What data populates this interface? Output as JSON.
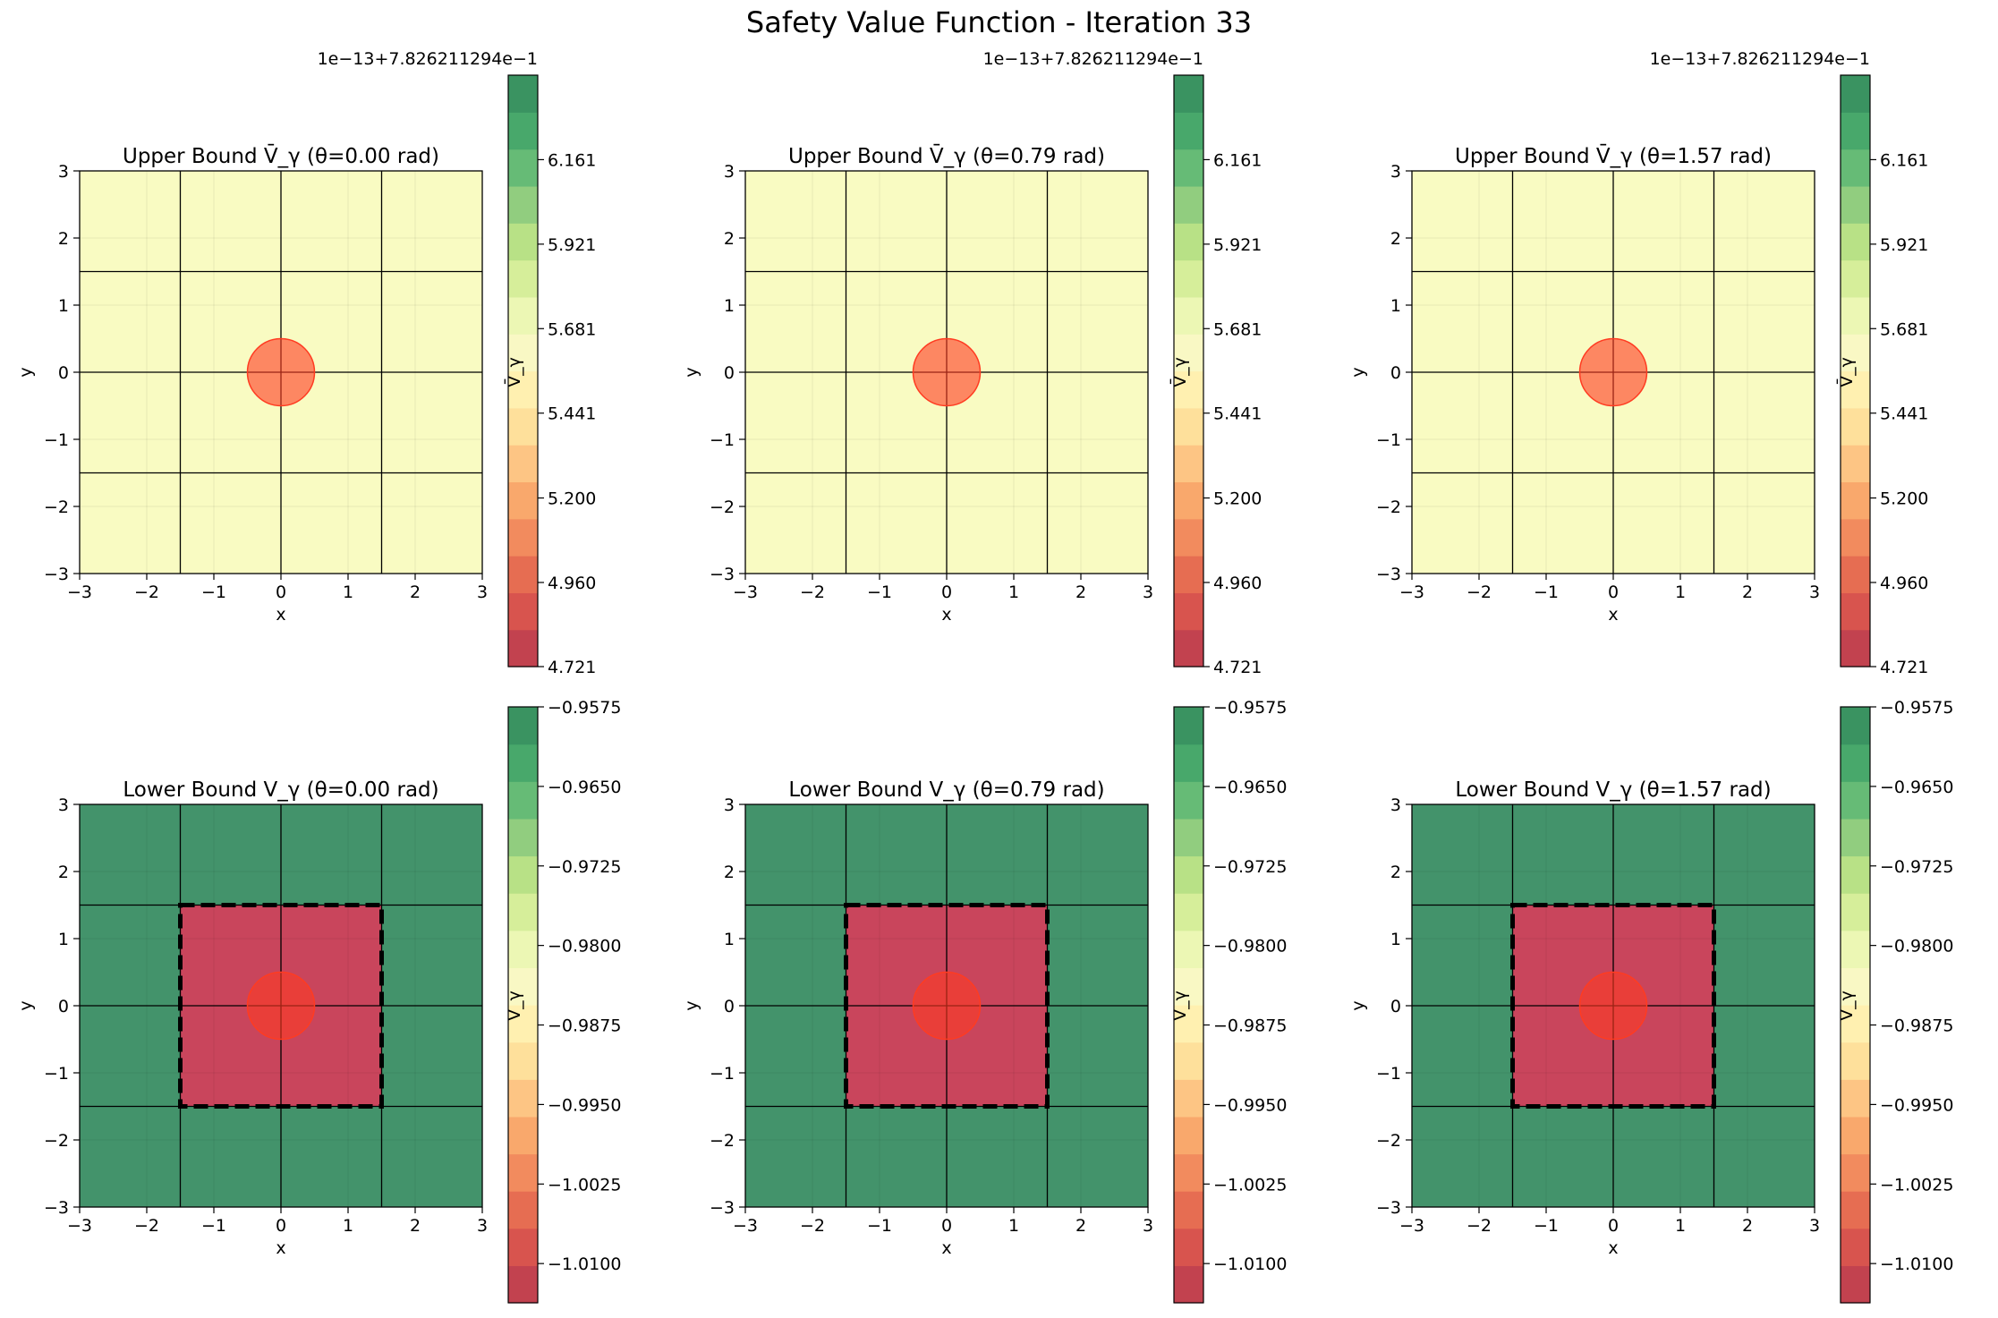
{
  "figure": {
    "title": "Safety Value Function - Iteration 33"
  },
  "chart_data": [
    {
      "type": "heatmap",
      "title": "Upper Bound V̄_γ (θ=0.00 rad)",
      "xlabel": "x",
      "ylabel": "y",
      "xlim": [
        -3,
        3
      ],
      "ylim": [
        -3,
        3
      ],
      "xticks": [
        "−3",
        "−2",
        "−1",
        "0",
        "1",
        "2",
        "3"
      ],
      "yticks": [
        "−3",
        "−2",
        "−1",
        "0",
        "1",
        "2",
        "3"
      ],
      "fill_value": 5.52,
      "circle": {
        "cx": 0,
        "cy": 0,
        "r": 0.5
      },
      "lines": [
        -1.5,
        0,
        1.5
      ],
      "colorbar": {
        "label": "V̄_γ",
        "offset": "1e−13+7.826211294e−1",
        "range": [
          4.721,
          6.401
        ],
        "ticks": [
          4.721,
          4.96,
          5.2,
          5.441,
          5.681,
          5.921,
          6.161
        ],
        "tick_labels": [
          "4.721",
          "4.960",
          "5.200",
          "5.441",
          "5.681",
          "5.921",
          "6.161"
        ]
      }
    },
    {
      "type": "heatmap",
      "title": "Upper Bound V̄_γ (θ=0.79 rad)",
      "xlabel": "x",
      "ylabel": "y",
      "xlim": [
        -3,
        3
      ],
      "ylim": [
        -3,
        3
      ],
      "xticks": [
        "−3",
        "−2",
        "−1",
        "0",
        "1",
        "2",
        "3"
      ],
      "yticks": [
        "−3",
        "−2",
        "−1",
        "0",
        "1",
        "2",
        "3"
      ],
      "fill_value": 5.52,
      "circle": {
        "cx": 0,
        "cy": 0,
        "r": 0.5
      },
      "lines": [
        -1.5,
        0,
        1.5
      ],
      "colorbar": {
        "label": "V̄_γ",
        "offset": "1e−13+7.826211294e−1",
        "range": [
          4.721,
          6.401
        ],
        "ticks": [
          4.721,
          4.96,
          5.2,
          5.441,
          5.681,
          5.921,
          6.161
        ],
        "tick_labels": [
          "4.721",
          "4.960",
          "5.200",
          "5.441",
          "5.681",
          "5.921",
          "6.161"
        ]
      }
    },
    {
      "type": "heatmap",
      "title": "Upper Bound V̄_γ (θ=1.57 rad)",
      "xlabel": "x",
      "ylabel": "y",
      "xlim": [
        -3,
        3
      ],
      "ylim": [
        -3,
        3
      ],
      "xticks": [
        "−3",
        "−2",
        "−1",
        "0",
        "1",
        "2",
        "3"
      ],
      "yticks": [
        "−3",
        "−2",
        "−1",
        "0",
        "1",
        "2",
        "3"
      ],
      "fill_value": 5.52,
      "circle": {
        "cx": 0,
        "cy": 0,
        "r": 0.5
      },
      "lines": [
        -1.5,
        0,
        1.5
      ],
      "colorbar": {
        "label": "V̄_γ",
        "offset": "1e−13+7.826211294e−1",
        "range": [
          4.721,
          6.401
        ],
        "ticks": [
          4.721,
          4.96,
          5.2,
          5.441,
          5.681,
          5.921,
          6.161
        ],
        "tick_labels": [
          "4.721",
          "4.960",
          "5.200",
          "5.441",
          "5.681",
          "5.921",
          "6.161"
        ]
      }
    },
    {
      "type": "heatmap",
      "title": "Lower Bound V_γ (θ=0.00 rad)",
      "xlabel": "x",
      "ylabel": "y",
      "xlim": [
        -3,
        3
      ],
      "ylim": [
        -3,
        3
      ],
      "xticks": [
        "−3",
        "−2",
        "−1",
        "0",
        "1",
        "2",
        "3"
      ],
      "yticks": [
        "−3",
        "−2",
        "−1",
        "0",
        "1",
        "2",
        "3"
      ],
      "outer_value": -0.9575,
      "inner_value": -1.0125,
      "inner_square": {
        "x0": -1.5,
        "x1": 1.5,
        "y0": -1.5,
        "y1": 1.5
      },
      "circle": {
        "cx": 0,
        "cy": 0,
        "r": 0.5
      },
      "lines": [
        -1.5,
        0,
        1.5
      ],
      "colorbar": {
        "label": "V_γ",
        "range": [
          -1.0137,
          -0.9575
        ],
        "ticks": [
          -1.01,
          -1.0025,
          -0.995,
          -0.9875,
          -0.98,
          -0.9725,
          -0.965,
          -0.9575
        ],
        "tick_labels": [
          "−1.0100",
          "−1.0025",
          "−0.9950",
          "−0.9875",
          "−0.9800",
          "−0.9725",
          "−0.9650",
          "−0.9575"
        ]
      }
    },
    {
      "type": "heatmap",
      "title": "Lower Bound V_γ (θ=0.79 rad)",
      "xlabel": "x",
      "ylabel": "y",
      "xlim": [
        -3,
        3
      ],
      "ylim": [
        -3,
        3
      ],
      "xticks": [
        "−3",
        "−2",
        "−1",
        "0",
        "1",
        "2",
        "3"
      ],
      "yticks": [
        "−3",
        "−2",
        "−1",
        "0",
        "1",
        "2",
        "3"
      ],
      "outer_value": -0.9575,
      "inner_value": -1.0125,
      "inner_square": {
        "x0": -1.5,
        "x1": 1.5,
        "y0": -1.5,
        "y1": 1.5
      },
      "circle": {
        "cx": 0,
        "cy": 0,
        "r": 0.5
      },
      "lines": [
        -1.5,
        0,
        1.5
      ],
      "colorbar": {
        "label": "V_γ",
        "range": [
          -1.0137,
          -0.9575
        ],
        "ticks": [
          -1.01,
          -1.0025,
          -0.995,
          -0.9875,
          -0.98,
          -0.9725,
          -0.965,
          -0.9575
        ],
        "tick_labels": [
          "−1.0100",
          "−1.0025",
          "−0.9950",
          "−0.9875",
          "−0.9800",
          "−0.9725",
          "−0.9650",
          "−0.9575"
        ]
      }
    },
    {
      "type": "heatmap",
      "title": "Lower Bound V_γ (θ=1.57 rad)",
      "xlabel": "x",
      "ylabel": "y",
      "xlim": [
        -3,
        3
      ],
      "ylim": [
        -3,
        3
      ],
      "xticks": [
        "−3",
        "−2",
        "−1",
        "0",
        "1",
        "2",
        "3"
      ],
      "yticks": [
        "−3",
        "−2",
        "−1",
        "0",
        "1",
        "2",
        "3"
      ],
      "outer_value": -0.9575,
      "inner_value": -1.0125,
      "inner_square": {
        "x0": -1.5,
        "x1": 1.5,
        "y0": -1.5,
        "y1": 1.5
      },
      "circle": {
        "cx": 0,
        "cy": 0,
        "r": 0.5
      },
      "lines": [
        -1.5,
        0,
        1.5
      ],
      "colorbar": {
        "label": "V_γ",
        "range": [
          -1.0137,
          -0.9575
        ],
        "ticks": [
          -1.01,
          -1.0025,
          -0.995,
          -0.9875,
          -0.98,
          -0.9725,
          -0.965,
          -0.9575
        ],
        "tick_labels": [
          "−1.0100",
          "−1.0025",
          "−0.9950",
          "−0.9875",
          "−0.9800",
          "−0.9725",
          "−0.9650",
          "−0.9575"
        ]
      }
    }
  ],
  "colors": {
    "colormap": [
      "#c2424f",
      "#d8544e",
      "#e66d52",
      "#f28b5e",
      "#f9a86c",
      "#fdc584",
      "#fee09b",
      "#fff0b0",
      "#f9f8c4",
      "#ecf7b4",
      "#d6ee9a",
      "#b8e186",
      "#91cd7f",
      "#66bb76",
      "#48a86b",
      "#3a9361"
    ],
    "upper_fill": "#f9fbc2",
    "outer_fill": "#43936b",
    "inner_fill": "#c9455c",
    "circle_fill": "#ff3b21",
    "circle_alpha": 0.6,
    "grid_line": "#000000"
  }
}
